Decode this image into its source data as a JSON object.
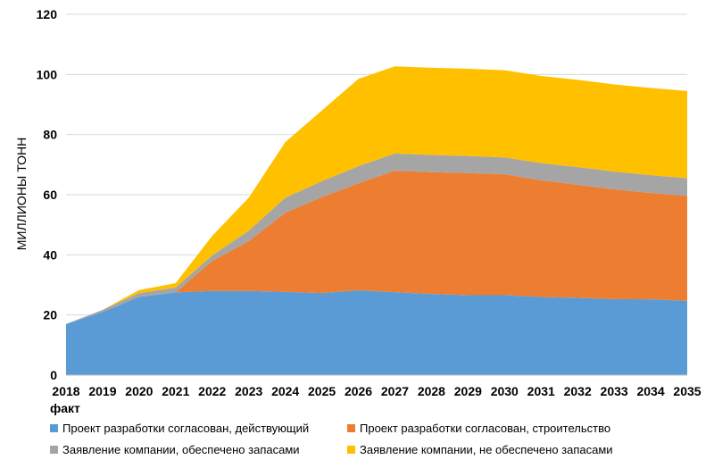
{
  "chart_data": {
    "type": "area",
    "stacked": true,
    "x": [
      "2018",
      "2019",
      "2020",
      "2021",
      "2022",
      "2023",
      "2024",
      "2025",
      "2026",
      "2027",
      "2028",
      "2029",
      "2030",
      "2031",
      "2032",
      "2033",
      "2034",
      "2035"
    ],
    "x_sublabel": "факт",
    "ylabel": "МИЛЛИОНЫ ТОНН",
    "ylim": [
      0,
      120
    ],
    "yticks": [
      0,
      20,
      40,
      60,
      80,
      100,
      120
    ],
    "grid": "horizontal",
    "legend_position": "bottom",
    "series": [
      {
        "name": "Проект разработки согласован, действующий",
        "color": "#5b9bd5",
        "values": [
          17,
          21,
          26,
          27.5,
          28,
          28,
          27.7,
          27.3,
          28.2,
          27.6,
          27,
          26.6,
          26.6,
          26,
          25.7,
          25.3,
          25.2,
          24.7
        ]
      },
      {
        "name": "Проект разработки согласован, строительство",
        "color": "#ed7d31",
        "values": [
          0,
          0,
          0,
          0,
          10,
          16.5,
          26.3,
          31.9,
          35.6,
          40.4,
          40.5,
          40.6,
          40.2,
          38.8,
          37.6,
          36.5,
          35.4,
          34.9
        ]
      },
      {
        "name": "Заявление компании, обеспечено запасами",
        "color": "#a5a5a5",
        "values": [
          0,
          0.7,
          1.3,
          1.6,
          1.8,
          3.5,
          5,
          5.3,
          5.7,
          5.7,
          5.7,
          5.7,
          5.6,
          5.7,
          5.9,
          5.9,
          5.9,
          5.9
        ]
      },
      {
        "name": "Заявление компании, не обеспечено запасами",
        "color": "#ffc000",
        "values": [
          0,
          0,
          1,
          1.5,
          6.5,
          11,
          18.5,
          23.5,
          29,
          29,
          29,
          29,
          29,
          29,
          29,
          29,
          29,
          29
        ]
      }
    ]
  }
}
